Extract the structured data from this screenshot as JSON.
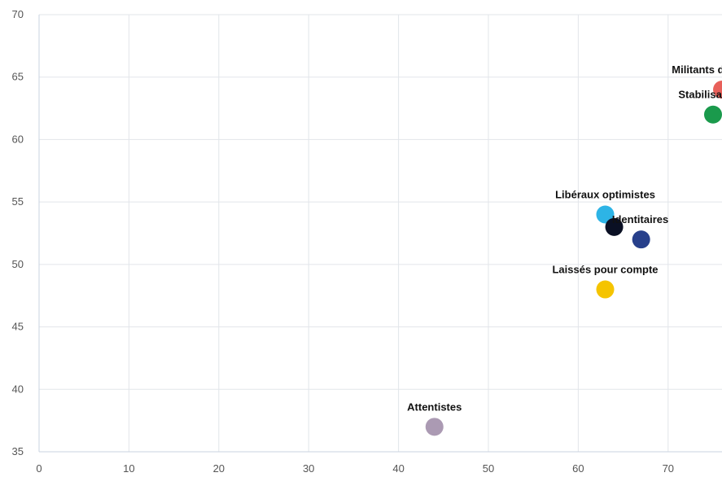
{
  "chart_data": {
    "type": "scatter",
    "title": "",
    "xlabel": "",
    "ylabel": "",
    "xlim": [
      0,
      76
    ],
    "ylim": [
      35,
      70
    ],
    "x_ticks": [
      0,
      10,
      20,
      30,
      40,
      50,
      60,
      70
    ],
    "y_ticks": [
      35,
      40,
      45,
      50,
      55,
      60,
      65,
      70
    ],
    "grid": true,
    "legend": "none",
    "points": [
      {
        "label": "Militants désabusés",
        "x": 76,
        "y": 64,
        "color": "#e8605a",
        "label_pos": "above"
      },
      {
        "label": "Stabilisateurs",
        "x": 75,
        "y": 62,
        "color": "#1a9a4c",
        "label_pos": "above"
      },
      {
        "label": "Libéraux optimistes",
        "x": 63,
        "y": 54,
        "color": "#2db4e6",
        "label_pos": "above"
      },
      {
        "label": "Identitaires",
        "x": 64,
        "y": 53,
        "color": "#0a1024",
        "label_pos": "above-right"
      },
      {
        "label": "",
        "x": 67,
        "y": 52,
        "color": "#27408b",
        "label_pos": "none"
      },
      {
        "label": "Laissés pour compte",
        "x": 63,
        "y": 48,
        "color": "#f5c400",
        "label_pos": "above"
      },
      {
        "label": "Attentistes",
        "x": 44,
        "y": 37,
        "color": "#ab9ab3",
        "label_pos": "above"
      }
    ]
  }
}
